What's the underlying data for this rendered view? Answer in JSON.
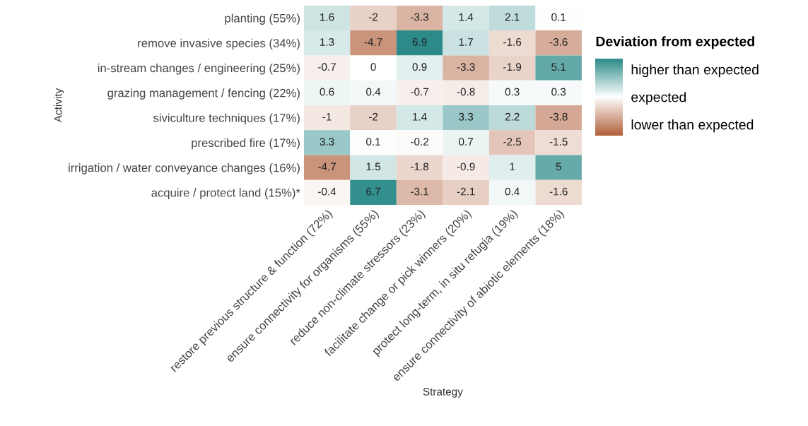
{
  "chart_data": {
    "type": "heatmap",
    "xlabel": "Strategy",
    "ylabel": "Activity",
    "clabel": "Deviation from expected",
    "categories": [
      "restore previous structure & function (72%)",
      "ensure connectivity for organisms (55%)",
      "reduce non-climate stressors (23%)",
      "facilitate change or pick winners (20%)",
      "protect long-term, in situ refugia (19%)",
      "ensure connectivity of abiotic elements (18%)"
    ],
    "y_categories": [
      "planting (55%)",
      "remove invasive species (34%)",
      "in-stream changes / engineering (25%)",
      "grazing management / fencing (22%)",
      "siviculture techniques (17%)",
      "prescribed fire (17%)",
      "irrigation / water conveyance changes (16%)",
      "acquire / protect land (15%)*"
    ],
    "cells": [
      [
        1.6,
        -2,
        -3.3,
        1.4,
        2.1,
        0.1
      ],
      [
        1.3,
        -4.7,
        6.9,
        1.7,
        -1.6,
        -3.6
      ],
      [
        -0.7,
        0,
        0.9,
        -3.3,
        -1.9,
        5.1
      ],
      [
        0.6,
        0.4,
        -0.7,
        -0.8,
        0.3,
        0.3
      ],
      [
        -1,
        -2,
        1.4,
        3.3,
        2.2,
        -3.8
      ],
      [
        3.3,
        0.1,
        -0.2,
        0.7,
        -2.5,
        -1.5
      ],
      [
        -4.7,
        1.5,
        -1.8,
        -0.9,
        1,
        5
      ],
      [
        -0.4,
        6.7,
        -3.1,
        -2.1,
        0.4,
        -1.6
      ]
    ],
    "data_labels": true,
    "colors": [
      "#b0603a",
      "#ffffff",
      "#2a8a88"
    ],
    "clim": [
      -7,
      7
    ],
    "cticks": [
      {
        "value": 5,
        "label": "higher than expected"
      },
      {
        "value": 0,
        "label": "expected"
      },
      {
        "value": -5,
        "label": "lower than expected"
      }
    ]
  }
}
